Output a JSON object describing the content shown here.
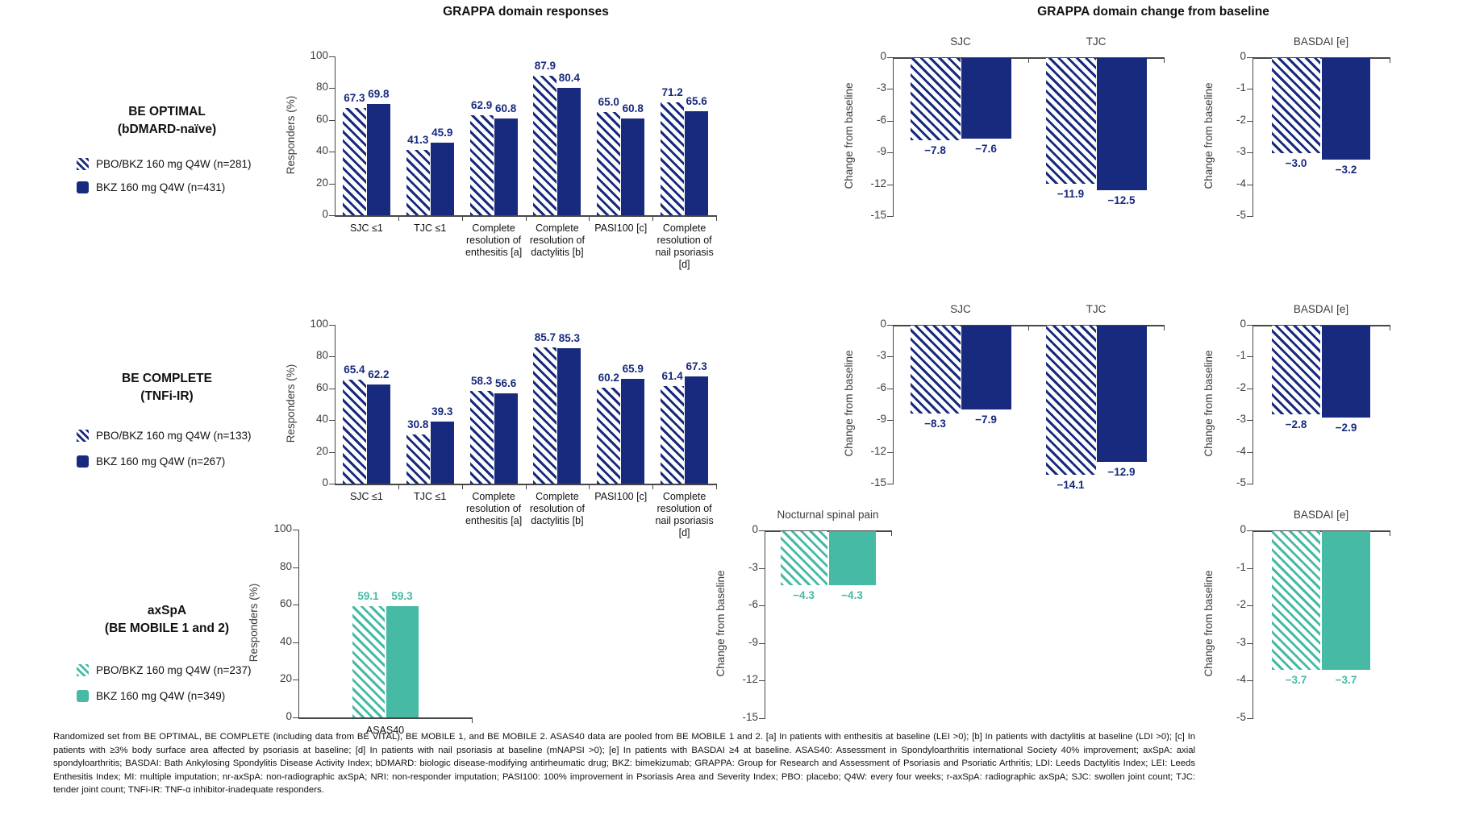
{
  "panel_titles": {
    "left": "GRAPPA domain responses",
    "right": "GRAPPA domain change from baseline"
  },
  "colors": {
    "navy": "#172a7e",
    "teal": "#46baa4"
  },
  "rows": [
    {
      "title": "BE OPTIMAL",
      "subtitle": "(bDMARD-naïve)",
      "legend": [
        {
          "label": "PBO/BKZ 160 mg Q4W (n=281)",
          "style": "hatched"
        },
        {
          "label": "BKZ 160 mg Q4W (n=431)",
          "style": "solid"
        }
      ]
    },
    {
      "title": "BE COMPLETE",
      "subtitle": "(TNFi-IR)",
      "legend": [
        {
          "label": "PBO/BKZ 160 mg Q4W (n=133)",
          "style": "hatched"
        },
        {
          "label": "BKZ 160 mg Q4W (n=267)",
          "style": "solid"
        }
      ]
    },
    {
      "title": "axSpA",
      "subtitle": "(BE MOBILE 1 and 2)",
      "legend": [
        {
          "label": "PBO/BKZ 160 mg Q4W (n=237)",
          "style": "hatched"
        },
        {
          "label": "BKZ 160 mg Q4W (n=349)",
          "style": "solid"
        }
      ]
    }
  ],
  "chart_data": [
    {
      "id": "r1_resp",
      "row": "BE OPTIMAL (bDMARD-naïve)",
      "type": "bar",
      "orientation": "up",
      "color": "#172a7e",
      "ylabel": "Responders (%)",
      "ylim": [
        0,
        100
      ],
      "yticks": [
        0,
        20,
        40,
        60,
        80,
        100
      ],
      "categories": [
        "SJC ≤1",
        "TJC ≤1",
        "Complete\nresolution of\nenthesitis [a]",
        "Complete\nresolution of\ndactylitis [b]",
        "PASI100 [c]",
        "Complete\nresolution of\nnail psoriasis\n[d]"
      ],
      "series": [
        {
          "name": "PBO/BKZ 160 mg Q4W (n=281)",
          "pattern": "hatched",
          "values": [
            67.3,
            41.3,
            62.9,
            87.9,
            65.0,
            71.2
          ]
        },
        {
          "name": "BKZ 160 mg Q4W (n=431)",
          "pattern": "solid",
          "values": [
            69.8,
            45.9,
            60.8,
            80.4,
            60.8,
            65.6
          ]
        }
      ]
    },
    {
      "id": "r1_chg",
      "row": "BE OPTIMAL (bDMARD-naïve)",
      "type": "bar",
      "orientation": "down",
      "color": "#172a7e",
      "ylabel": "Change from baseline",
      "ylim": [
        -15,
        0
      ],
      "yticks": [
        0,
        -3,
        -6,
        -9,
        -12,
        -15
      ],
      "categories": [
        "SJC",
        "TJC"
      ],
      "series": [
        {
          "name": "PBO/BKZ 160 mg Q4W (n=281)",
          "pattern": "hatched",
          "values": [
            -7.8,
            -11.9
          ]
        },
        {
          "name": "BKZ 160 mg Q4W (n=431)",
          "pattern": "solid",
          "values": [
            -7.6,
            -12.5
          ]
        }
      ]
    },
    {
      "id": "r1_bas",
      "row": "BE OPTIMAL (bDMARD-naïve)",
      "type": "bar",
      "orientation": "down",
      "color": "#172a7e",
      "ylabel": "Change from baseline",
      "ylim": [
        -5,
        0
      ],
      "yticks": [
        0,
        -1,
        -2,
        -3,
        -4,
        -5
      ],
      "categories": [
        "BASDAI [e]"
      ],
      "series": [
        {
          "name": "PBO/BKZ 160 mg Q4W (n=281)",
          "pattern": "hatched",
          "values": [
            -3.0
          ]
        },
        {
          "name": "BKZ 160 mg Q4W (n=431)",
          "pattern": "solid",
          "values": [
            -3.2
          ]
        }
      ]
    },
    {
      "id": "r2_resp",
      "row": "BE COMPLETE (TNFi-IR)",
      "type": "bar",
      "orientation": "up",
      "color": "#172a7e",
      "ylabel": "Responders (%)",
      "ylim": [
        0,
        100
      ],
      "yticks": [
        0,
        20,
        40,
        60,
        80,
        100
      ],
      "categories": [
        "SJC ≤1",
        "TJC ≤1",
        "Complete\nresolution of\nenthesitis [a]",
        "Complete\nresolution of\ndactylitis [b]",
        "PASI100 [c]",
        "Complete\nresolution of\nnail psoriasis\n[d]"
      ],
      "series": [
        {
          "name": "PBO/BKZ 160 mg Q4W (n=133)",
          "pattern": "hatched",
          "values": [
            65.4,
            30.8,
            58.3,
            85.7,
            60.2,
            61.4
          ]
        },
        {
          "name": "BKZ 160 mg Q4W (n=267)",
          "pattern": "solid",
          "values": [
            62.2,
            39.3,
            56.6,
            85.3,
            65.9,
            67.3
          ]
        }
      ]
    },
    {
      "id": "r2_chg",
      "row": "BE COMPLETE (TNFi-IR)",
      "type": "bar",
      "orientation": "down",
      "color": "#172a7e",
      "ylabel": "Change from baseline",
      "ylim": [
        -15,
        0
      ],
      "yticks": [
        0,
        -3,
        -6,
        -9,
        -12,
        -15
      ],
      "categories": [
        "SJC",
        "TJC"
      ],
      "series": [
        {
          "name": "PBO/BKZ 160 mg Q4W (n=133)",
          "pattern": "hatched",
          "values": [
            -8.3,
            -14.1
          ]
        },
        {
          "name": "BKZ 160 mg Q4W (n=267)",
          "pattern": "solid",
          "values": [
            -7.9,
            -12.9
          ]
        }
      ]
    },
    {
      "id": "r2_bas",
      "row": "BE COMPLETE (TNFi-IR)",
      "type": "bar",
      "orientation": "down",
      "color": "#172a7e",
      "ylabel": "Change from baseline",
      "ylim": [
        -5,
        0
      ],
      "yticks": [
        0,
        -1,
        -2,
        -3,
        -4,
        -5
      ],
      "categories": [
        "BASDAI [e]"
      ],
      "series": [
        {
          "name": "PBO/BKZ 160 mg Q4W (n=133)",
          "pattern": "hatched",
          "values": [
            -2.8
          ]
        },
        {
          "name": "BKZ 160 mg Q4W (n=267)",
          "pattern": "solid",
          "values": [
            -2.9
          ]
        }
      ]
    },
    {
      "id": "r3_resp",
      "row": "axSpA (BE MOBILE 1 and 2)",
      "type": "bar",
      "orientation": "up",
      "color": "#46baa4",
      "ylabel": "Responders (%)",
      "ylim": [
        0,
        100
      ],
      "yticks": [
        0,
        20,
        40,
        60,
        80,
        100
      ],
      "categories": [
        "ASAS40"
      ],
      "series": [
        {
          "name": "PBO/BKZ 160 mg Q4W (n=237)",
          "pattern": "hatched",
          "values": [
            59.1
          ]
        },
        {
          "name": "BKZ 160 mg Q4W (n=349)",
          "pattern": "solid",
          "values": [
            59.3
          ]
        }
      ]
    },
    {
      "id": "r3_noct",
      "row": "axSpA (BE MOBILE 1 and 2)",
      "type": "bar",
      "orientation": "down",
      "color": "#46baa4",
      "ylabel": "Change from baseline",
      "ylim": [
        -15,
        0
      ],
      "yticks": [
        0,
        -3,
        -6,
        -9,
        -12,
        -15
      ],
      "categories": [
        "Nocturnal spinal pain"
      ],
      "series": [
        {
          "name": "PBO/BKZ 160 mg Q4W (n=237)",
          "pattern": "hatched",
          "values": [
            -4.3
          ]
        },
        {
          "name": "BKZ 160 mg Q4W (n=349)",
          "pattern": "solid",
          "values": [
            -4.3
          ]
        }
      ]
    },
    {
      "id": "r3_bas",
      "row": "axSpA (BE MOBILE 1 and 2)",
      "type": "bar",
      "orientation": "down",
      "color": "#46baa4",
      "ylabel": "Change from baseline",
      "ylim": [
        -5,
        0
      ],
      "yticks": [
        0,
        -1,
        -2,
        -3,
        -4,
        -5
      ],
      "categories": [
        "BASDAI [e]"
      ],
      "series": [
        {
          "name": "PBO/BKZ 160 mg Q4W (n=237)",
          "pattern": "hatched",
          "values": [
            -3.7
          ]
        },
        {
          "name": "BKZ 160 mg Q4W (n=349)",
          "pattern": "solid",
          "values": [
            -3.7
          ]
        }
      ]
    }
  ],
  "footnote": "Randomized set from BE OPTIMAL, BE COMPLETE (including data from BE VITAL), BE MOBILE 1, and BE MOBILE 2. ASAS40 data are pooled from BE MOBILE 1 and 2. [a] In patients with enthesitis at baseline (LEI >0); [b] In patients with dactylitis at baseline (LDI >0); [c] In patients with ≥3% body surface area affected by psoriasis at baseline; [d] In patients with nail psoriasis at baseline (mNAPSI >0); [e] In patients with BASDAI ≥4 at baseline. ASAS40: Assessment in Spondyloarthritis international Society 40% improvement; axSpA: axial spondyloarthritis; BASDAI: Bath Ankylosing Spondylitis Disease Activity Index; bDMARD: biologic disease-modifying antirheumatic drug; BKZ: bimekizumab; GRAPPA: Group for Research and Assessment of Psoriasis and Psoriatic Arthritis; LDI: Leeds Dactylitis Index; LEI: Leeds Enthesitis Index; MI: multiple imputation; nr-axSpA: non-radiographic axSpA; NRI: non-responder imputation; PASI100: 100% improvement in Psoriasis Area and Severity Index; PBO: placebo; Q4W: every four weeks; r-axSpA: radiographic axSpA; SJC: swollen joint count; TJC: tender joint count; TNFi-IR: TNF-α inhibitor-inadequate responders."
}
